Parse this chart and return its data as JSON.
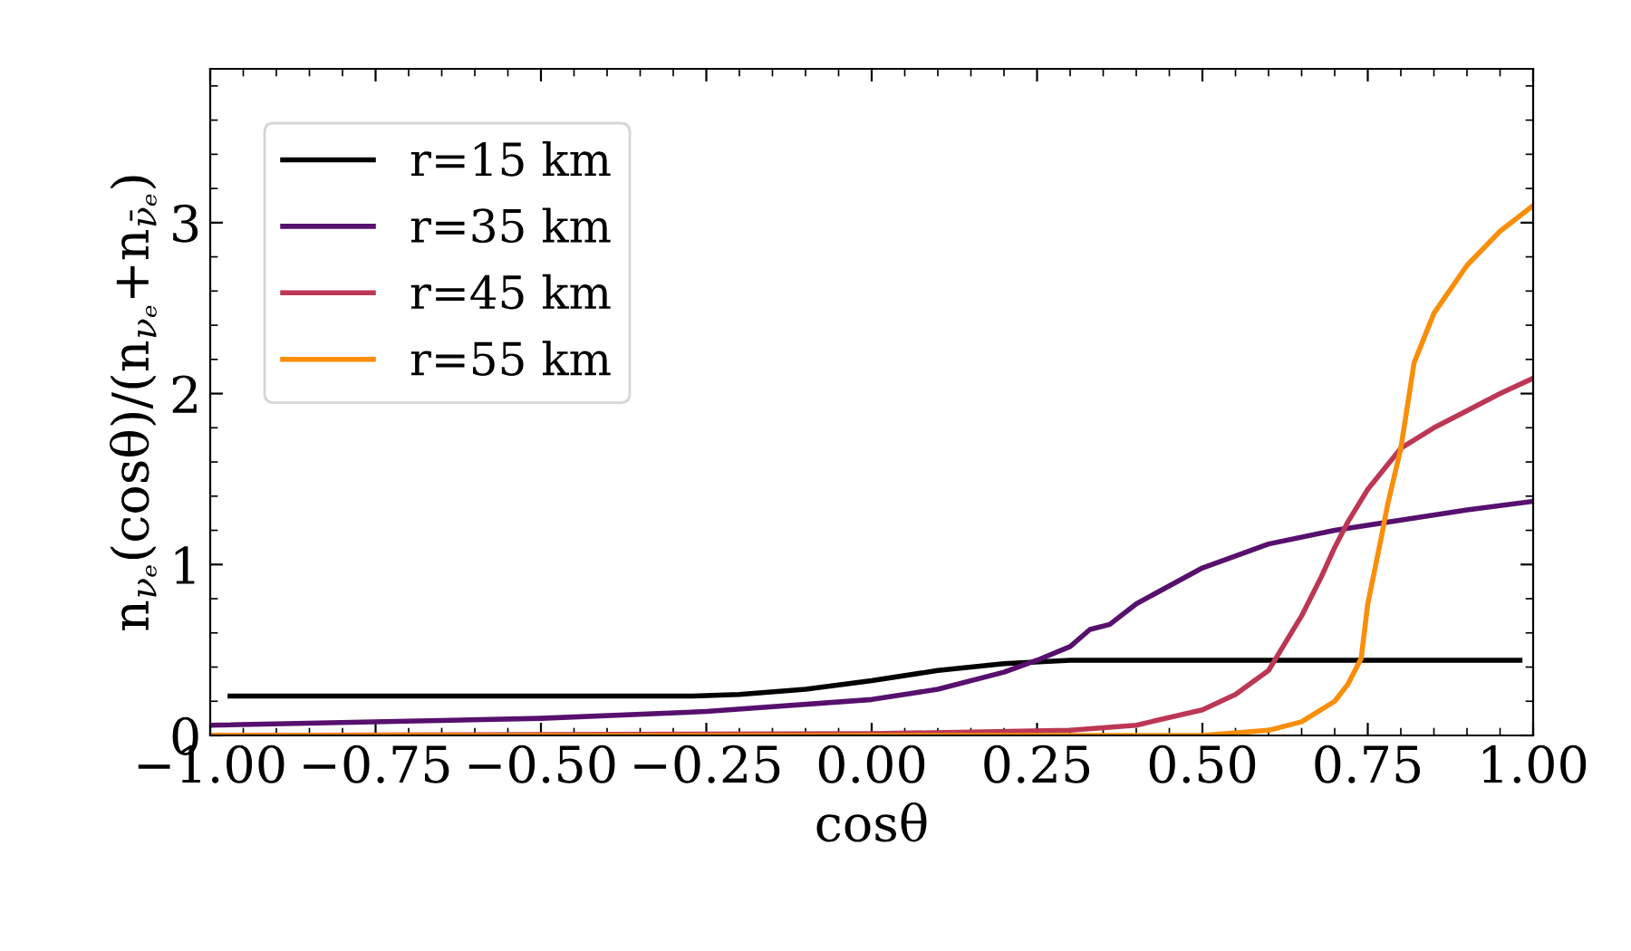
{
  "chart_data": {
    "type": "line",
    "xlabel": "cosθ",
    "ylabel": "n$_{νₑ}$(cosθ)/(n$_{νₑ}$+n$_{ν̄ₑ}$)",
    "xlim": [
      -1,
      1
    ],
    "ylim": [
      0,
      3.9
    ],
    "xticks": [
      {
        "value": -1,
        "label": "−1.00"
      },
      {
        "value": -0.75,
        "label": "−0.75"
      },
      {
        "value": -0.5,
        "label": "−0.50"
      },
      {
        "value": -0.25,
        "label": "−0.25"
      },
      {
        "value": 0,
        "label": "0.00"
      },
      {
        "value": 0.25,
        "label": "0.25"
      },
      {
        "value": 0.5,
        "label": "0.50"
      },
      {
        "value": 0.75,
        "label": "0.75"
      },
      {
        "value": 1,
        "label": "1.00"
      }
    ],
    "yticks": [
      0,
      1,
      2,
      3
    ],
    "grid": false,
    "legend": "top left",
    "series": [
      {
        "name": "r=15 km",
        "color": "#000000",
        "x": [
          -0.97,
          -0.27,
          -0.2,
          -0.1,
          0,
          0.1,
          0.2,
          0.3,
          0.98
        ],
        "values": [
          0.23,
          0.23,
          0.24,
          0.27,
          0.32,
          0.38,
          0.42,
          0.44,
          0.44
        ]
      },
      {
        "name": "r=35 km",
        "color": "#57106e",
        "x": [
          -1,
          -0.5,
          -0.25,
          0,
          0.1,
          0.2,
          0.25,
          0.3,
          0.33,
          0.36,
          0.4,
          0.5,
          0.6,
          0.7,
          0.8,
          0.9,
          1
        ],
        "values": [
          0.06,
          0.1,
          0.14,
          0.21,
          0.27,
          0.37,
          0.44,
          0.52,
          0.62,
          0.65,
          0.77,
          0.98,
          1.12,
          1.2,
          1.26,
          1.32,
          1.37
        ]
      },
      {
        "name": "r=45 km",
        "color": "#bc3754",
        "x": [
          -1,
          0,
          0.3,
          0.4,
          0.5,
          0.55,
          0.6,
          0.65,
          0.68,
          0.7,
          0.72,
          0.75,
          0.8,
          0.85,
          0.9,
          0.95,
          1
        ],
        "values": [
          0,
          0.01,
          0.03,
          0.06,
          0.15,
          0.24,
          0.38,
          0.7,
          0.93,
          1.1,
          1.25,
          1.44,
          1.68,
          1.8,
          1.9,
          2.0,
          2.09
        ]
      },
      {
        "name": "r=55 km",
        "color": "#f98e09",
        "x": [
          -1,
          0.5,
          0.6,
          0.65,
          0.7,
          0.72,
          0.74,
          0.75,
          0.77,
          0.78,
          0.8,
          0.82,
          0.85,
          0.9,
          0.95,
          1
        ],
        "values": [
          0,
          0.0,
          0.03,
          0.08,
          0.2,
          0.3,
          0.45,
          0.77,
          1.15,
          1.35,
          1.68,
          2.18,
          2.47,
          2.75,
          2.95,
          3.1
        ]
      }
    ]
  }
}
